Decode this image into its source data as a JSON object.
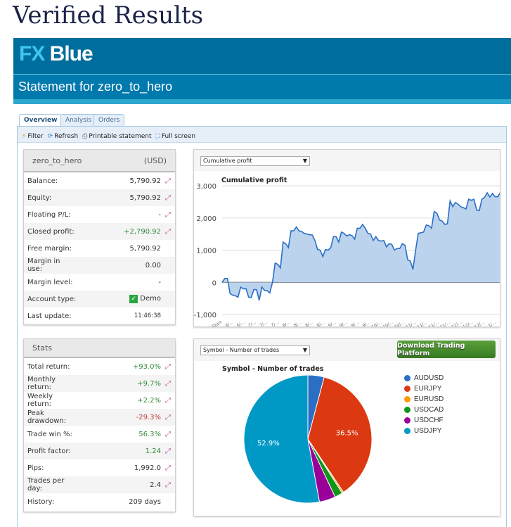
{
  "page_title": "Verified Results",
  "header": {
    "logo_fx": "FX",
    "logo_blue": " Blue",
    "statement": "Statement for zero_to_hero"
  },
  "tabs": [
    {
      "label": "Overview",
      "active": true
    },
    {
      "label": "Analysis"
    },
    {
      "label": "Orders"
    }
  ],
  "toolbar": {
    "filter": "Filter",
    "refresh": "Refresh",
    "print": "Printable statement",
    "fullscreen": "Full screen"
  },
  "account": {
    "name": "zero_to_hero",
    "currency": "(USD)",
    "rows": [
      {
        "label": "Balance:",
        "value": "5,790.92",
        "chart": true
      },
      {
        "label": "Equity:",
        "value": "5,790.92",
        "chart": true
      },
      {
        "label": "Floating P/L:",
        "value": "-",
        "chart": true
      },
      {
        "label": "Closed profit:",
        "value": "+2,790.92",
        "chart": true,
        "tone": "pos"
      },
      {
        "label": "Free margin:",
        "value": "5,790.92"
      },
      {
        "label": "Margin in use:",
        "value": "0.00"
      },
      {
        "label": "Margin level:",
        "value": "-"
      },
      {
        "label": "Account type:",
        "value": "Demo",
        "check": true
      },
      {
        "label": "Last update:",
        "value": "11:46:38",
        "small": true
      }
    ]
  },
  "stats": {
    "title": "Stats",
    "rows": [
      {
        "label": "Total return:",
        "value": "+93.0%",
        "chart": true,
        "tone": "pos"
      },
      {
        "label": "Monthly return:",
        "value": "+9.7%",
        "chart": true,
        "tone": "pos"
      },
      {
        "label": "Weekly return:",
        "value": "+2.2%",
        "chart": true,
        "tone": "pos"
      },
      {
        "label": "Peak drawdown:",
        "value": "-29.3%",
        "chart": true,
        "tone": "neg"
      },
      {
        "label": "Trade win %:",
        "value": "56.3%",
        "chart": true,
        "tone": "pos"
      },
      {
        "label": "Profit factor:",
        "value": "1.24",
        "chart": true,
        "tone": "pos"
      },
      {
        "label": "Pips:",
        "value": "1,992.0",
        "chart": true
      },
      {
        "label": "Trades per day:",
        "value": "2.4",
        "chart": true
      },
      {
        "label": "History:",
        "value": "209 days"
      }
    ]
  },
  "line_select": "Cumulative profit",
  "pie_select": "Symbol - Number of trades",
  "download_button": "Download Trading Platform",
  "chart_data": [
    {
      "type": "area",
      "title": "Cumulative profit",
      "ylim": [
        -1000,
        3000
      ],
      "yticks": [
        "3,000",
        "2,000",
        "1,000",
        "0",
        "-1,000"
      ],
      "ytick_values": [
        3000,
        2000,
        1000,
        0,
        -1000
      ],
      "grid": true,
      "color": "#2a6fc4",
      "fill": "#bcd3ee",
      "xtick_labels": [
        "Start",
        "6/…",
        "6/…",
        "7/…",
        "7/…",
        "7/…",
        "8/…",
        "8/…",
        "8/…",
        "8/…",
        "9/…",
        "9/…",
        "9/…",
        "9/…",
        "10/…",
        "10/…",
        "10/…",
        "11/…",
        "11/…",
        "11/…",
        "11/…",
        "12/…",
        "12/…",
        "12/…",
        "1/…"
      ],
      "values": [
        0,
        120,
        120,
        -350,
        -400,
        -420,
        -460,
        -150,
        -200,
        -200,
        -460,
        -470,
        -220,
        -230,
        -560,
        -150,
        -250,
        -260,
        -330,
        0,
        600,
        560,
        450,
        1250,
        1200,
        1080,
        1600,
        1600,
        1720,
        1600,
        1580,
        1520,
        1500,
        1480,
        1470,
        1300,
        1020,
        1000,
        800,
        1020,
        1000,
        1080,
        1420,
        1420,
        1250,
        1560,
        1520,
        1440,
        1480,
        1450,
        1340,
        1680,
        1680,
        1800,
        1680,
        1520,
        1500,
        1300,
        1420,
        1300,
        1280,
        1300,
        1100,
        1200,
        1180,
        1000,
        1050,
        1050,
        1200,
        1150,
        700,
        660,
        400,
        1000,
        1520,
        1540,
        1560,
        1780,
        1760,
        1680,
        2200,
        2150,
        1940,
        1900,
        1800,
        1820,
        2530,
        2350,
        2480,
        2430,
        2350,
        2320,
        2280,
        2580,
        2550,
        2580,
        2250,
        2230,
        2580,
        2640,
        2780,
        2650,
        2760,
        2660,
        2660,
        2800
      ]
    },
    {
      "type": "pie",
      "title": "Symbol - Number of trades",
      "legend": "right",
      "slices": [
        {
          "label": "AUDUSD",
          "value": 4.1,
          "color": "#2a6fc4"
        },
        {
          "label": "EURJPY",
          "value": 36.5,
          "color": "#dc3912",
          "show_label": true
        },
        {
          "label": "EURUSD",
          "value": 0.4,
          "color": "#ff9900"
        },
        {
          "label": "USDCAD",
          "value": 2.0,
          "color": "#109618"
        },
        {
          "label": "USDCHF",
          "value": 4.1,
          "color": "#990099"
        },
        {
          "label": "USDJPY",
          "value": 52.9,
          "color": "#0099c6",
          "show_label": true
        }
      ]
    }
  ]
}
